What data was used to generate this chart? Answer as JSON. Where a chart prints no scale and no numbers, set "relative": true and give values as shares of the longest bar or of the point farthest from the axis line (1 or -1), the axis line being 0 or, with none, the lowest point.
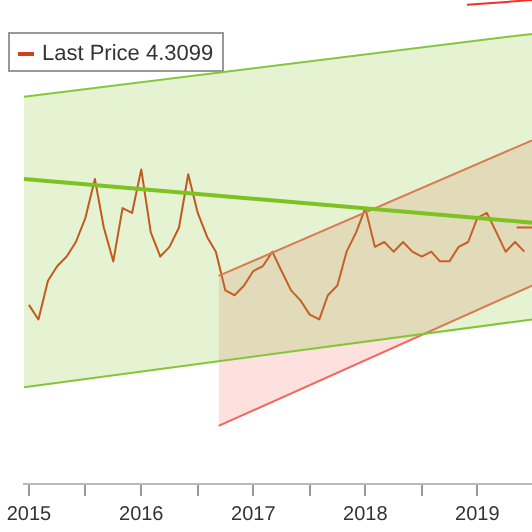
{
  "chart_data": {
    "type": "line",
    "relative": true,
    "legend": "top left",
    "xlim": [
      "2015-06-15",
      "2019-12-26"
    ],
    "xticks": [
      {
        "value": "2015-07-01",
        "label": "2015"
      },
      {
        "value": "2016-01-01",
        "label": null
      },
      {
        "value": "2016-07-01",
        "label": "2016"
      },
      {
        "value": "2017-01-01",
        "label": null
      },
      {
        "value": "2017-07-01",
        "label": "2017"
      },
      {
        "value": "2018-01-01",
        "label": null
      },
      {
        "value": "2018-07-01",
        "label": "2018"
      },
      {
        "value": "2019-01-01",
        "label": null
      },
      {
        "value": "2019-07-01",
        "label": "2019"
      }
    ],
    "series": [
      {
        "color": "#86c63a",
        "x": [
          "2015-06-15",
          "2019-12-26"
        ],
        "values": [
          0.8,
          0.93
        ]
      },
      {
        "color": "#7cc222",
        "x": [
          "2015-06-15",
          "2019-12-26"
        ],
        "values": [
          0.63,
          0.54
        ],
        "lower": [
          0.2,
          0.34
        ],
        "upper": [
          0.8,
          0.93
        ]
      },
      {
        "color": "#86c63a",
        "x": [
          "2015-06-15",
          "2019-12-26"
        ],
        "values": [
          0.2,
          0.34
        ]
      },
      {
        "color": "#f06a5e",
        "x": [
          "2017-03-10",
          "2019-12-26"
        ],
        "values": [
          0.43,
          0.71
        ]
      },
      {
        "color": "#f06a5e",
        "x": [
          "2017-03-10",
          "2019-12-26"
        ],
        "values": [
          0.12,
          0.41
        ],
        "lower": [
          0.12,
          0.41
        ],
        "upper": [
          0.43,
          0.71
        ]
      },
      {
        "color": "#f0302a",
        "x": [
          "2019-05-28",
          "2019-12-26"
        ],
        "values": [
          0.99,
          1.0
        ]
      },
      {
        "color": "#f0302a",
        "x": [
          "2019-11-06",
          "2019-12-26"
        ],
        "values": [
          0.53,
          0.53
        ]
      },
      {
        "name": "Last Price 4.3099",
        "color": "#d2401c",
        "x": [
          "2015-07",
          "2015-08",
          "2015-09",
          "2015-10",
          "2015-11",
          "2015-12",
          "2016-01",
          "2016-02",
          "2016-03",
          "2016-04",
          "2016-05",
          "2016-06",
          "2016-07",
          "2016-08",
          "2016-09",
          "2016-10",
          "2016-11",
          "2016-12",
          "2017-01",
          "2017-02",
          "2017-03",
          "2017-04",
          "2017-05",
          "2017-06",
          "2017-07",
          "2017-08",
          "2017-09",
          "2017-10",
          "2017-11",
          "2017-12",
          "2018-01",
          "2018-02",
          "2018-03",
          "2018-04",
          "2018-05",
          "2018-06",
          "2018-07",
          "2018-08",
          "2018-09",
          "2018-10",
          "2018-11",
          "2018-12",
          "2019-01",
          "2019-02",
          "2019-03",
          "2019-04",
          "2019-05",
          "2019-06",
          "2019-07",
          "2019-08",
          "2019-09",
          "2019-10",
          "2019-11",
          "2019-12"
        ],
        "values": [
          0.37,
          0.34,
          0.42,
          0.45,
          0.47,
          0.5,
          0.55,
          0.63,
          0.53,
          0.46,
          0.57,
          0.56,
          0.65,
          0.52,
          0.47,
          0.49,
          0.53,
          0.64,
          0.56,
          0.51,
          0.48,
          0.4,
          0.39,
          0.41,
          0.44,
          0.45,
          0.48,
          0.44,
          0.4,
          0.38,
          0.35,
          0.34,
          0.39,
          0.41,
          0.48,
          0.52,
          0.57,
          0.49,
          0.5,
          0.48,
          0.5,
          0.48,
          0.47,
          0.48,
          0.46,
          0.46,
          0.49,
          0.5,
          0.55,
          0.56,
          0.52,
          0.48,
          0.5,
          0.48
        ]
      }
    ]
  }
}
